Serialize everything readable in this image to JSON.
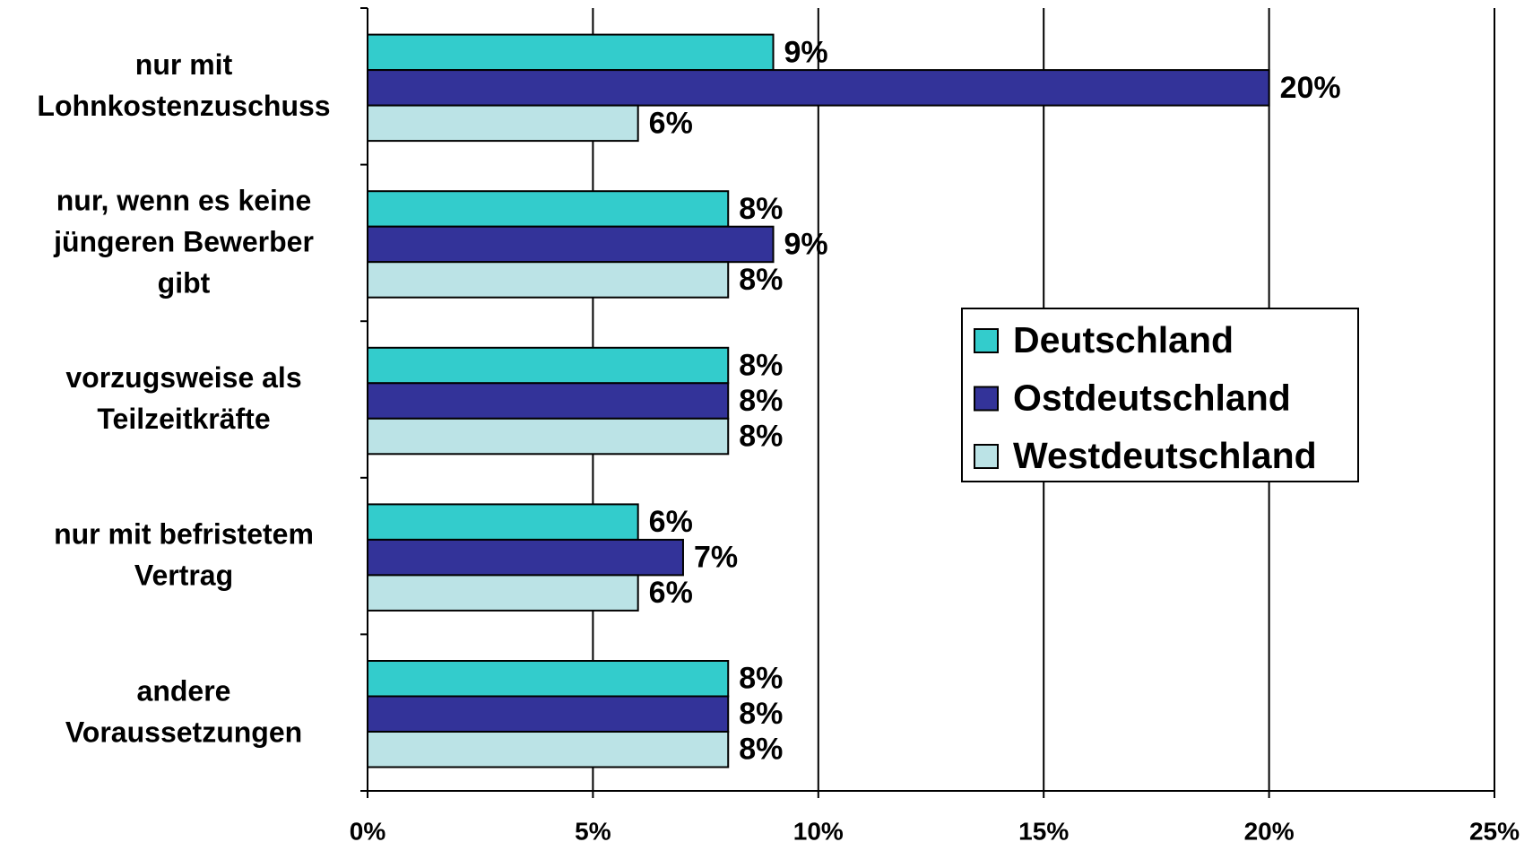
{
  "chart_data": {
    "type": "bar",
    "orientation": "horizontal",
    "categories": [
      "nur mit\nLohnkostenzuschuss",
      "nur, wenn es keine\njüngeren Bewerber\ngibt",
      "vorzugsweise als\nTeilzeitkräfte",
      "nur mit befristetem\nVertrag",
      "andere\nVoraussetzungen"
    ],
    "series": [
      {
        "name": "Deutschland",
        "color": "#33cccc",
        "values": [
          9,
          8,
          8,
          6,
          8
        ],
        "value_labels": [
          "9%",
          "8%",
          "8%",
          "6%",
          "8%"
        ]
      },
      {
        "name": "Ostdeutschland",
        "color": "#333399",
        "values": [
          20,
          9,
          8,
          7,
          8
        ],
        "value_labels": [
          "20%",
          "9%",
          "8%",
          "7%",
          "8%"
        ]
      },
      {
        "name": "Westdeutschland",
        "color": "#bbe3e6",
        "values": [
          6,
          8,
          8,
          6,
          8
        ],
        "value_labels": [
          "6%",
          "8%",
          "8%",
          "6%",
          "8%"
        ]
      }
    ],
    "xlim": [
      0,
      25
    ],
    "xticks": [
      {
        "value": 0,
        "label": "0%"
      },
      {
        "value": 5,
        "label": "5%"
      },
      {
        "value": 10,
        "label": "10%"
      },
      {
        "value": 15,
        "label": "15%"
      },
      {
        "value": 20,
        "label": "20%"
      },
      {
        "value": 25,
        "label": "25%"
      }
    ],
    "grid": true,
    "legend": "right"
  }
}
